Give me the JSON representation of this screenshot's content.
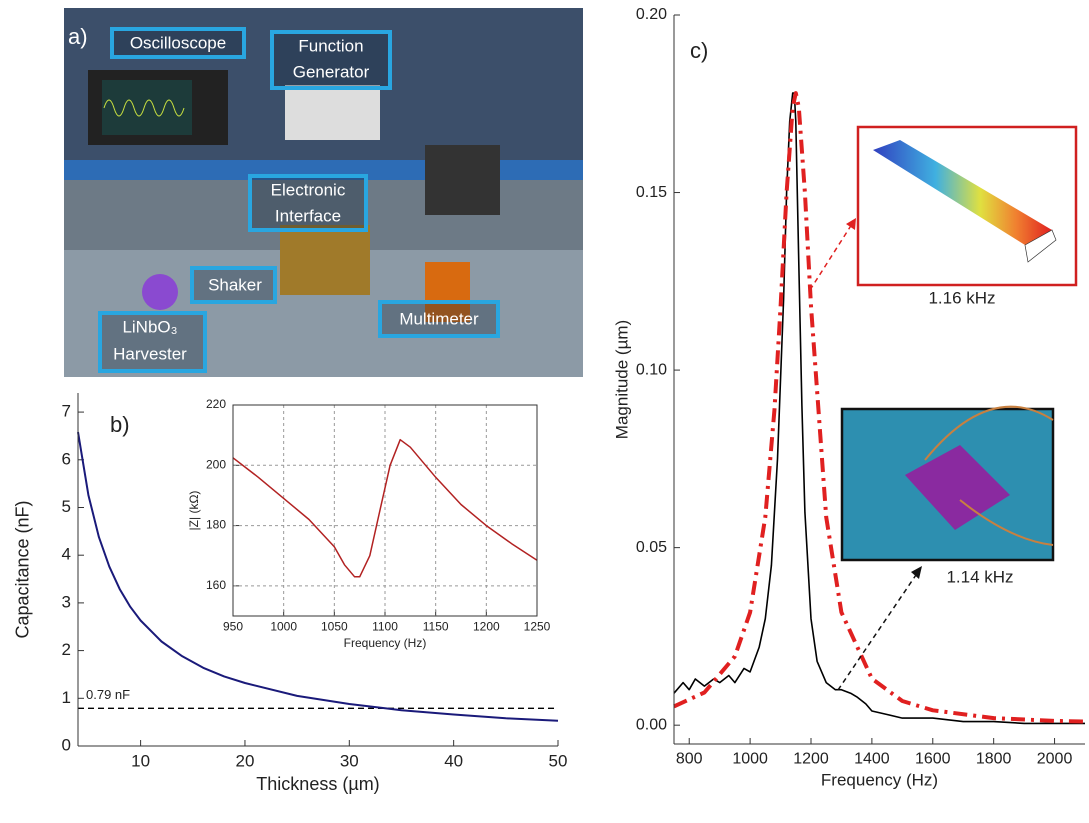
{
  "panel_a": {
    "label": "a)",
    "annotations": [
      "Oscilloscope",
      "Function",
      "Generator",
      "Electronic",
      "Interface",
      "Shaker",
      "LiNbO₃",
      "Harvester",
      "Multimeter"
    ]
  },
  "chart_data": [
    {
      "type": "line",
      "panel_label": "b)",
      "x_label": "Thickness (µm)",
      "y_label": "Capacitance (nF)",
      "x": [
        4,
        5,
        6,
        7,
        8,
        9,
        10,
        12,
        14,
        16,
        18,
        20,
        25,
        30,
        35,
        40,
        45,
        50
      ],
      "series": [
        {
          "color": "#1a1a7a",
          "values": [
            6.58,
            5.26,
            4.38,
            3.76,
            3.29,
            2.92,
            2.63,
            2.19,
            1.88,
            1.64,
            1.46,
            1.32,
            1.05,
            0.88,
            0.75,
            0.66,
            0.58,
            0.53
          ]
        }
      ],
      "xlim": [
        4,
        50
      ],
      "xticks": [
        10,
        20,
        30,
        40,
        50
      ],
      "ylim": [
        0,
        7.4
      ],
      "yticks": [
        0,
        1,
        2,
        3,
        4,
        5,
        6,
        7
      ],
      "hline": {
        "value": 0.79,
        "label": "0.79 nF"
      },
      "grid": false,
      "frame": false
    },
    {
      "type": "line",
      "x_label": "Frequency (Hz)",
      "y_label": "|Z| (kΩ)",
      "x": [
        950,
        975,
        1000,
        1025,
        1050,
        1060,
        1070,
        1075,
        1085,
        1095,
        1105,
        1115,
        1125,
        1150,
        1175,
        1200,
        1225,
        1250
      ],
      "series": [
        {
          "color": "#b22222",
          "values": [
            202.5,
            196,
            189,
            182,
            173,
            167,
            163,
            163,
            170,
            185,
            200,
            208.5,
            206,
            196,
            187,
            180,
            174,
            168.5
          ]
        }
      ],
      "xlim": [
        950,
        1250
      ],
      "xticks": [
        950,
        1000,
        1050,
        1100,
        1150,
        1200,
        1250
      ],
      "ylim": [
        150,
        220
      ],
      "yticks": [
        160,
        180,
        200,
        220
      ],
      "grid": true,
      "frame": true
    },
    {
      "type": "line",
      "panel_label": "c)",
      "x_label": "Frequency (Hz)",
      "y_label": "Magnitude (µm)",
      "annotations": [
        "1.16 kHz",
        "1.14 kHz"
      ],
      "series": [
        {
          "color": "#000000",
          "dash": "solid",
          "x": [
            750,
            780,
            800,
            820,
            850,
            880,
            900,
            930,
            950,
            980,
            1000,
            1030,
            1050,
            1070,
            1090,
            1110,
            1120,
            1130,
            1140,
            1145,
            1150,
            1160,
            1170,
            1180,
            1200,
            1220,
            1250,
            1280,
            1300,
            1330,
            1350,
            1380,
            1400,
            1450,
            1500,
            1600,
            1700,
            1800,
            1900,
            2000,
            2100
          ],
          "values": [
            0.009,
            0.012,
            0.01,
            0.013,
            0.011,
            0.013,
            0.012,
            0.014,
            0.012,
            0.016,
            0.015,
            0.022,
            0.03,
            0.045,
            0.075,
            0.12,
            0.15,
            0.17,
            0.178,
            0.178,
            0.17,
            0.13,
            0.09,
            0.06,
            0.03,
            0.018,
            0.012,
            0.01,
            0.01,
            0.009,
            0.008,
            0.006,
            0.004,
            0.003,
            0.002,
            0.002,
            0.001,
            0.001,
            0.0005,
            0.0005,
            0.0005
          ]
        },
        {
          "color": "#e02020",
          "dash": "dashdot",
          "x": [
            750,
            850,
            950,
            1000,
            1050,
            1080,
            1100,
            1120,
            1140,
            1150,
            1160,
            1180,
            1200,
            1250,
            1300,
            1400,
            1500,
            1600,
            1800,
            2000,
            2100
          ],
          "values": [
            0.0053,
            0.0092,
            0.0194,
            0.0318,
            0.0586,
            0.089,
            0.118,
            0.15,
            0.174,
            0.178,
            0.174,
            0.15,
            0.118,
            0.0586,
            0.0318,
            0.0131,
            0.0068,
            0.0042,
            0.002,
            0.0012,
            0.001
          ]
        }
      ],
      "xlim": [
        750,
        2100
      ],
      "xticks": [
        800,
        1000,
        1200,
        1400,
        1600,
        1800,
        2000
      ],
      "ylim": [
        -0.0053,
        0.2
      ],
      "yticks": [
        {
          "value": 0,
          "label": "0.00"
        },
        {
          "value": 0.05,
          "label": "0.05"
        },
        {
          "value": 0.1,
          "label": "0.10"
        },
        {
          "value": 0.15,
          "label": "0.15"
        },
        {
          "value": 0.2,
          "label": "0.20"
        }
      ],
      "grid": false,
      "frame": false
    }
  ]
}
